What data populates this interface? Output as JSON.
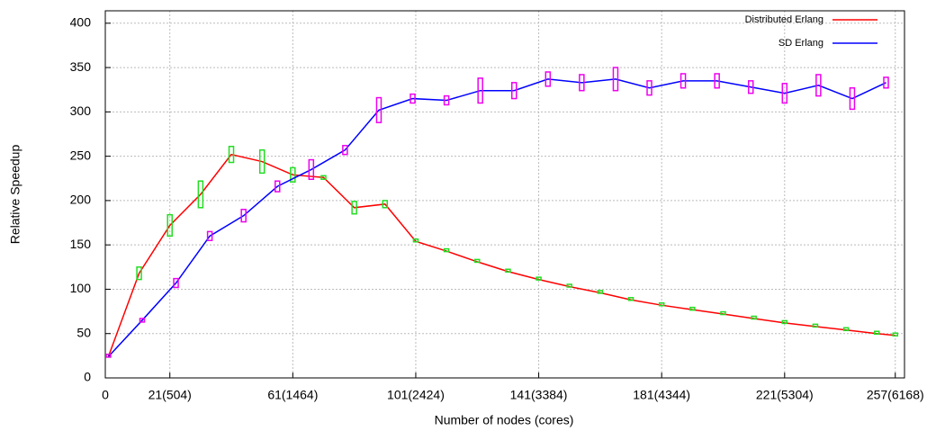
{
  "chart_data": {
    "type": "line",
    "x_label": "Number of nodes (cores)",
    "y_label": "Relative Speedup",
    "xlim": [
      0,
      260
    ],
    "ylim": [
      0,
      414
    ],
    "xticks": [
      0,
      {
        "value": 21,
        "label": "21(504)"
      },
      {
        "value": 61,
        "label": "61(1464)"
      },
      {
        "value": 101,
        "label": "101(2424)"
      },
      {
        "value": 141,
        "label": "141(3384)"
      },
      {
        "value": 181,
        "label": "181(4344)"
      },
      {
        "value": 221,
        "label": "221(5304)"
      },
      {
        "value": 257,
        "label": "257(6168)"
      }
    ],
    "yticks": [
      0,
      50,
      100,
      150,
      200,
      250,
      300,
      350,
      400
    ],
    "grid": true,
    "legend": "top-right",
    "series": [
      {
        "name": "Distributed Erlang",
        "color": "#ff0000",
        "error_color": "#22dd22",
        "x": [
          1,
          11,
          21,
          31,
          41,
          51,
          61,
          71,
          81,
          91,
          101,
          111,
          121,
          131,
          141,
          151,
          161,
          171,
          181,
          191,
          201,
          211,
          221,
          231,
          241,
          251,
          257
        ],
        "values": [
          24,
          118,
          172,
          207,
          252,
          244,
          229,
          226,
          192,
          196,
          154,
          143,
          131,
          120,
          111,
          103,
          96,
          88,
          82,
          77,
          72,
          67,
          62,
          58,
          54,
          50,
          48
        ],
        "errors": [
          1,
          7,
          12,
          15,
          9,
          13,
          8,
          2,
          7,
          4,
          1,
          1,
          1,
          1,
          1,
          1,
          1,
          1,
          1,
          1,
          1,
          1,
          1,
          1,
          1,
          1,
          1
        ]
      },
      {
        "name": "SD Erlang",
        "color": "#0000ff",
        "error_color": "#ee00ee",
        "x": [
          1,
          12,
          23,
          34,
          45,
          56,
          67,
          78,
          89,
          100,
          111,
          122,
          133,
          144,
          155,
          166,
          177,
          188,
          199,
          210,
          221,
          232,
          243,
          254
        ],
        "values": [
          24,
          65,
          107,
          160,
          183,
          216,
          235,
          257,
          302,
          315,
          313,
          324,
          324,
          337,
          333,
          337,
          327,
          335,
          335,
          328,
          321,
          330,
          315,
          333
        ],
        "errors": [
          1,
          2,
          5,
          5,
          7,
          6,
          11,
          5,
          14,
          5,
          5,
          14,
          9,
          8,
          9,
          13,
          8,
          8,
          8,
          7,
          11,
          12,
          12,
          6
        ]
      }
    ]
  }
}
